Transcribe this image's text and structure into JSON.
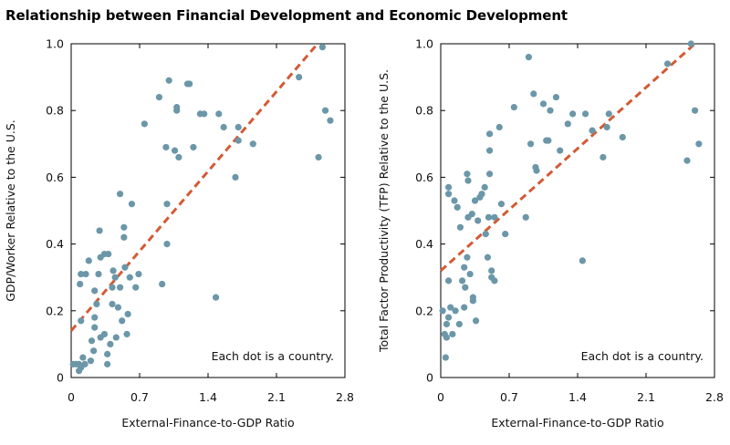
{
  "figure": {
    "title": "Relationship between Financial Development and Economic Development"
  },
  "colors": {
    "dots": "#6b97a8",
    "trend": "#d35a35",
    "frame": "#000000"
  },
  "chart_data": [
    {
      "type": "scatter",
      "title": "",
      "xlabel": "External-Finance-to-GDP Ratio",
      "ylabel": "GDP/Worker Relative to the U.S.",
      "xlim": [
        0,
        2.8
      ],
      "ylim": [
        0,
        1.0
      ],
      "xticks": [
        "0",
        "0.7",
        "1.4",
        "2.1",
        "2.8"
      ],
      "yticks": [
        "0",
        "0.2",
        "0.4",
        "0.6",
        "0.8",
        "1.0"
      ],
      "annotation": "Each dot is a country.",
      "trendline": {
        "x": [
          0,
          2.52
        ],
        "y": [
          0.14,
          1.0
        ]
      },
      "points": [
        [
          0.02,
          0.04
        ],
        [
          0.05,
          0.04
        ],
        [
          0.08,
          0.02
        ],
        [
          0.08,
          0.04
        ],
        [
          0.1,
          0.03
        ],
        [
          0.12,
          0.06
        ],
        [
          0.14,
          0.04
        ],
        [
          0.1,
          0.17
        ],
        [
          0.09,
          0.28
        ],
        [
          0.1,
          0.31
        ],
        [
          0.15,
          0.31
        ],
        [
          0.18,
          0.35
        ],
        [
          0.2,
          0.05
        ],
        [
          0.21,
          0.11
        ],
        [
          0.23,
          0.08
        ],
        [
          0.24,
          0.15
        ],
        [
          0.24,
          0.18
        ],
        [
          0.24,
          0.26
        ],
        [
          0.26,
          0.22
        ],
        [
          0.28,
          0.31
        ],
        [
          0.29,
          0.44
        ],
        [
          0.3,
          0.36
        ],
        [
          0.3,
          0.12
        ],
        [
          0.34,
          0.13
        ],
        [
          0.34,
          0.37
        ],
        [
          0.37,
          0.04
        ],
        [
          0.37,
          0.07
        ],
        [
          0.38,
          0.37
        ],
        [
          0.4,
          0.1
        ],
        [
          0.42,
          0.22
        ],
        [
          0.42,
          0.27
        ],
        [
          0.43,
          0.32
        ],
        [
          0.45,
          0.3
        ],
        [
          0.46,
          0.12
        ],
        [
          0.48,
          0.21
        ],
        [
          0.5,
          0.27
        ],
        [
          0.5,
          0.55
        ],
        [
          0.52,
          0.17
        ],
        [
          0.54,
          0.42
        ],
        [
          0.54,
          0.45
        ],
        [
          0.55,
          0.33
        ],
        [
          0.57,
          0.13
        ],
        [
          0.58,
          0.19
        ],
        [
          0.6,
          0.3
        ],
        [
          0.62,
          0.52
        ],
        [
          0.66,
          0.27
        ],
        [
          0.69,
          0.31
        ],
        [
          0.75,
          0.76
        ],
        [
          0.9,
          0.84
        ],
        [
          0.93,
          0.28
        ],
        [
          0.97,
          0.69
        ],
        [
          0.98,
          0.4
        ],
        [
          0.98,
          0.52
        ],
        [
          1.0,
          0.89
        ],
        [
          1.06,
          0.68
        ],
        [
          1.08,
          0.81
        ],
        [
          1.08,
          0.8
        ],
        [
          1.1,
          0.66
        ],
        [
          1.19,
          0.88
        ],
        [
          1.21,
          0.88
        ],
        [
          1.25,
          0.69
        ],
        [
          1.32,
          0.79
        ],
        [
          1.36,
          0.79
        ],
        [
          1.48,
          0.24
        ],
        [
          1.51,
          0.79
        ],
        [
          1.56,
          0.75
        ],
        [
          1.68,
          0.6
        ],
        [
          1.71,
          0.75
        ],
        [
          1.71,
          0.71
        ],
        [
          1.86,
          0.7
        ],
        [
          2.33,
          0.9
        ],
        [
          2.53,
          0.66
        ],
        [
          2.57,
          0.99
        ],
        [
          2.6,
          0.8
        ],
        [
          2.65,
          0.77
        ]
      ]
    },
    {
      "type": "scatter",
      "title": "",
      "xlabel": "External-Finance-to-GDP Ratio",
      "ylabel": "Total Factor Productivity (TFP) Relative to the U.S.",
      "xlim": [
        0,
        2.8
      ],
      "ylim": [
        0,
        1.0
      ],
      "xticks": [
        "0",
        "0.7",
        "1.4",
        "2.1",
        "2.8"
      ],
      "yticks": [
        "0",
        "0.2",
        "0.4",
        "0.6",
        "0.8",
        "1.0"
      ],
      "annotation": "Each dot is a country.",
      "trendline": {
        "x": [
          0,
          2.6
        ],
        "y": [
          0.32,
          1.0
        ]
      },
      "points": [
        [
          0.02,
          0.2
        ],
        [
          0.04,
          0.13
        ],
        [
          0.05,
          0.06
        ],
        [
          0.06,
          0.16
        ],
        [
          0.06,
          0.12
        ],
        [
          0.08,
          0.18
        ],
        [
          0.08,
          0.29
        ],
        [
          0.08,
          0.55
        ],
        [
          0.08,
          0.57
        ],
        [
          0.1,
          0.21
        ],
        [
          0.12,
          0.13
        ],
        [
          0.14,
          0.53
        ],
        [
          0.15,
          0.2
        ],
        [
          0.17,
          0.51
        ],
        [
          0.19,
          0.16
        ],
        [
          0.2,
          0.45
        ],
        [
          0.22,
          0.29
        ],
        [
          0.24,
          0.33
        ],
        [
          0.24,
          0.21
        ],
        [
          0.25,
          0.27
        ],
        [
          0.27,
          0.61
        ],
        [
          0.27,
          0.36
        ],
        [
          0.28,
          0.59
        ],
        [
          0.28,
          0.48
        ],
        [
          0.3,
          0.31
        ],
        [
          0.32,
          0.49
        ],
        [
          0.33,
          0.23
        ],
        [
          0.33,
          0.24
        ],
        [
          0.35,
          0.53
        ],
        [
          0.36,
          0.17
        ],
        [
          0.38,
          0.47
        ],
        [
          0.4,
          0.54
        ],
        [
          0.42,
          0.55
        ],
        [
          0.45,
          0.57
        ],
        [
          0.46,
          0.43
        ],
        [
          0.48,
          0.36
        ],
        [
          0.49,
          0.48
        ],
        [
          0.5,
          0.61
        ],
        [
          0.5,
          0.73
        ],
        [
          0.5,
          0.68
        ],
        [
          0.52,
          0.32
        ],
        [
          0.52,
          0.3
        ],
        [
          0.55,
          0.29
        ],
        [
          0.55,
          0.48
        ],
        [
          0.6,
          0.75
        ],
        [
          0.62,
          0.52
        ],
        [
          0.66,
          0.43
        ],
        [
          0.75,
          0.81
        ],
        [
          0.87,
          0.48
        ],
        [
          0.9,
          0.96
        ],
        [
          0.92,
          0.7
        ],
        [
          0.95,
          0.85
        ],
        [
          0.97,
          0.63
        ],
        [
          0.98,
          0.62
        ],
        [
          1.05,
          0.82
        ],
        [
          1.08,
          0.71
        ],
        [
          1.1,
          0.71
        ],
        [
          1.12,
          0.8
        ],
        [
          1.18,
          0.84
        ],
        [
          1.22,
          0.68
        ],
        [
          1.3,
          0.76
        ],
        [
          1.35,
          0.79
        ],
        [
          1.45,
          0.35
        ],
        [
          1.48,
          0.79
        ],
        [
          1.55,
          0.74
        ],
        [
          1.66,
          0.66
        ],
        [
          1.7,
          0.75
        ],
        [
          1.72,
          0.79
        ],
        [
          1.86,
          0.72
        ],
        [
          2.32,
          0.94
        ],
        [
          2.52,
          0.65
        ],
        [
          2.56,
          1.0
        ],
        [
          2.6,
          0.8
        ],
        [
          2.64,
          0.7
        ]
      ]
    }
  ]
}
